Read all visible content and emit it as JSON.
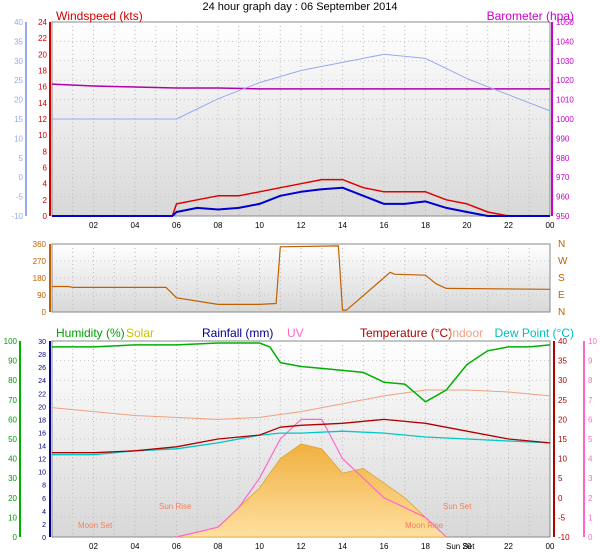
{
  "title": "24 hour graph day : 06 September 2014",
  "colors": {
    "wind": "#d00000",
    "wind_avg": "#0000d0",
    "wind_axis_left": "#9aa8ee",
    "baro": "#cc00cc",
    "baro_line": "#b000b0",
    "direction": "#c06000",
    "humidity": "#00b000",
    "solar": "#c8c000",
    "rain": "#00008b",
    "uv": "#ff66cc",
    "temp": "#b00000",
    "indoor": "#f0a080",
    "dew": "#00c0c0"
  },
  "time_ticks": [
    "02",
    "04",
    "06",
    "08",
    "10",
    "12",
    "14",
    "16",
    "18",
    "20",
    "22",
    "00"
  ],
  "charts": {
    "wind": {
      "left_label": "Windspeed (kts)",
      "right_label": "Barometer (hpa)",
      "left_blue_ticks": [
        "40",
        "35",
        "30",
        "25",
        "20",
        "15",
        "10",
        "5",
        "0",
        "-5",
        "-10"
      ],
      "left_red_ticks": [
        "24",
        "22",
        "20",
        "18",
        "16",
        "14",
        "12",
        "10",
        "8",
        "6",
        "4",
        "2",
        "0"
      ],
      "right_ticks": [
        "1050",
        "1040",
        "1030",
        "1020",
        "1010",
        "1000",
        "990",
        "980",
        "970",
        "960",
        "950"
      ]
    },
    "direction": {
      "left_ticks": [
        "360",
        "270",
        "180",
        "90",
        "0"
      ],
      "right_ticks": [
        "N",
        "W",
        "S",
        "E",
        "N"
      ]
    },
    "weather": {
      "labels": {
        "humidity": "Humidity (%)",
        "solar": "Solar",
        "rainfall": "Rainfall (mm)",
        "uv": "UV",
        "temperature": "Temperature (°C)",
        "indoor": "Indoor",
        "dewpoint": "Dew Point (°C)"
      },
      "hum_ticks": [
        "100",
        "90",
        "80",
        "70",
        "60",
        "50",
        "40",
        "30",
        "20",
        "10",
        "0"
      ],
      "rain_ticks": [
        "30",
        "28",
        "26",
        "24",
        "22",
        "20",
        "18",
        "16",
        "14",
        "12",
        "10",
        "8",
        "6",
        "4",
        "2",
        "0"
      ],
      "temp_ticks": [
        "40",
        "35",
        "30",
        "25",
        "20",
        "15",
        "10",
        "5",
        "0",
        "-5",
        "-10"
      ],
      "uv_ticks": [
        "10",
        "9",
        "8",
        "7",
        "6",
        "5",
        "4",
        "3",
        "2",
        "1",
        "0"
      ],
      "events": {
        "moon_set": "Moon Set",
        "sun_rise": "Sun Rise",
        "moon_rise": "Moon Rise",
        "sun_set": "Sun Set",
        "sun_set_2": "Sun Set"
      }
    }
  },
  "chart_data": [
    {
      "type": "line",
      "title": "24 hour graph day : 06 September 2014",
      "x_unit": "hour",
      "ylabel_left": "Windspeed (kts)",
      "ylabel_right": "Barometer (hpa)",
      "ylim_left": [
        0,
        24
      ],
      "ylim_right": [
        950,
        1050
      ],
      "series": [
        {
          "name": "Barometer (hpa)",
          "x": [
            0,
            2,
            4,
            6,
            8,
            10,
            12,
            14,
            16,
            18,
            20,
            22,
            24
          ],
          "values": [
            1018,
            1017,
            1016.5,
            1016,
            1016,
            1015.5,
            1015.5,
            1015.5,
            1015.5,
            1015.5,
            1015.5,
            1015.5,
            1015.5
          ]
        },
        {
          "x": [
            0,
            2,
            4,
            6,
            8,
            10,
            12,
            14,
            16,
            18,
            20,
            22,
            24
          ],
          "values": [
            12,
            12,
            12,
            12,
            14.5,
            16.5,
            18,
            19,
            20,
            19.5,
            17,
            15,
            13
          ]
        },
        {
          "x": [
            0,
            5.8,
            6,
            7,
            8,
            9,
            10,
            11,
            12,
            13,
            14,
            15,
            16,
            17,
            18,
            19,
            20,
            21,
            22,
            24
          ],
          "values": [
            0,
            0,
            1.5,
            2,
            2.5,
            2.5,
            3,
            3.5,
            4,
            4.5,
            4.5,
            3.5,
            3,
            3,
            3,
            2,
            1.5,
            0.5,
            0,
            0
          ]
        },
        {
          "x": [
            0,
            5.8,
            6,
            7,
            8,
            9,
            10,
            11,
            12,
            13,
            14,
            15,
            16,
            17,
            18,
            19,
            20,
            21,
            22,
            24
          ],
          "values": [
            0,
            0,
            0.5,
            1,
            0.8,
            1,
            1.5,
            2.5,
            3,
            3.3,
            3.5,
            2.5,
            1.5,
            1.5,
            1.8,
            1,
            0.5,
            0,
            0,
            0
          ]
        }
      ]
    },
    {
      "type": "line",
      "x_unit": "hour",
      "ylim": [
        0,
        360
      ],
      "series": [
        {
          "x": [
            0,
            0.8,
            1,
            5.5,
            6,
            8,
            10,
            10.8,
            11,
            13.8,
            14,
            14.2,
            16.3,
            16.5,
            18,
            18.5,
            19,
            24
          ],
          "values": [
            135,
            135,
            130,
            130,
            75,
            40,
            40,
            45,
            345,
            350,
            10,
            10,
            210,
            200,
            195,
            150,
            125,
            120
          ]
        }
      ]
    },
    {
      "type": "line",
      "x_unit": "hour",
      "ylim_humidity": [
        0,
        100
      ],
      "ylim_temperature": [
        -10,
        40
      ],
      "series": [
        {
          "name": "Humidity (%)",
          "x": [
            0,
            2,
            4,
            6,
            8,
            10,
            10.5,
            11,
            12,
            13,
            14,
            15,
            16,
            17,
            18,
            19,
            20,
            21,
            22,
            23,
            24
          ],
          "values": [
            97,
            97,
            98,
            98,
            99,
            99,
            97,
            89,
            87,
            86,
            85,
            84,
            79,
            78,
            69,
            75,
            88,
            95,
            97,
            97,
            98
          ]
        },
        {
          "name": "Indoor",
          "x": [
            0,
            4,
            8,
            10,
            12,
            14,
            16,
            18,
            20,
            22,
            24
          ],
          "values": [
            23,
            21,
            20,
            20.5,
            22,
            24,
            26,
            27.5,
            27.5,
            27,
            26
          ]
        },
        {
          "name": "Temperature (°C)",
          "x": [
            0,
            2,
            4,
            6,
            8,
            10,
            11,
            12,
            14,
            16,
            18,
            20,
            22,
            24
          ],
          "values": [
            11.5,
            11.5,
            12,
            13,
            15,
            16,
            18,
            18.5,
            19,
            20,
            19,
            17,
            15,
            14
          ]
        },
        {
          "name": "Dew Point (°C)",
          "x": [
            0,
            2,
            4,
            6,
            8,
            10,
            11,
            12,
            14,
            16,
            18,
            20,
            22,
            24
          ],
          "values": [
            11,
            11,
            12,
            12.5,
            14,
            16,
            16.5,
            16.5,
            17,
            16.5,
            15.5,
            15,
            14.5,
            14
          ]
        },
        {
          "name": "Solar",
          "x": [
            6,
            7,
            8,
            9,
            10,
            11,
            12,
            13,
            14,
            15,
            16,
            17,
            18,
            19
          ],
          "values": [
            0,
            1,
            2,
            6,
            10,
            16,
            19,
            18,
            13,
            14,
            11,
            8,
            4,
            0
          ]
        },
        {
          "name": "UV",
          "x": [
            6,
            8,
            9,
            10,
            11,
            12,
            13,
            14,
            15,
            16,
            17,
            18,
            19
          ],
          "values": [
            0,
            0.5,
            1.5,
            3,
            5,
            6,
            6,
            4,
            3,
            2,
            1.5,
            1,
            0
          ]
        }
      ]
    }
  ]
}
